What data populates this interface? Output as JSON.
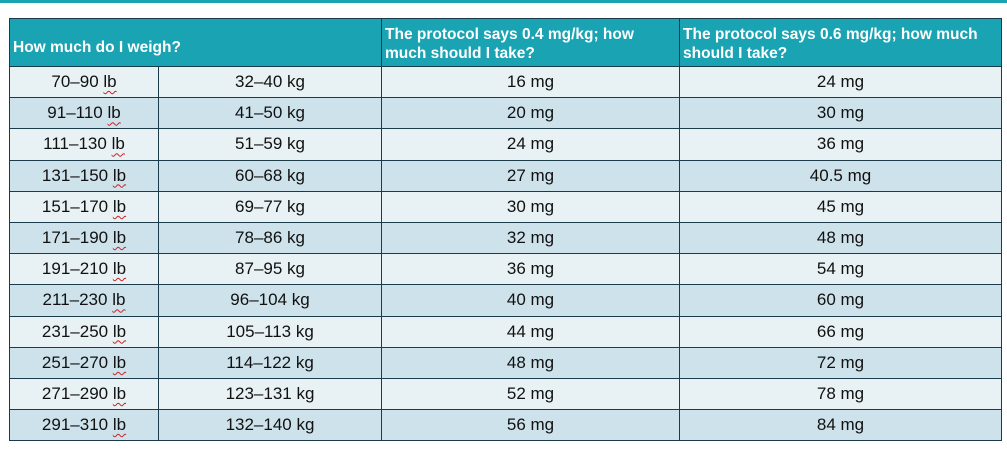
{
  "table": {
    "headers": [
      "How much do I weigh?",
      "The protocol says 0.4 mg/kg; how much should I take?",
      "The protocol says 0.6 mg/kg; how much should I take?"
    ],
    "rows": [
      {
        "lb_range": "70–90",
        "lb_unit": "lb",
        "kg": "32–40 kg",
        "dose_04": "16 mg",
        "dose_06": "24 mg"
      },
      {
        "lb_range": "91–110",
        "lb_unit": "lb",
        "kg": "41–50 kg",
        "dose_04": "20 mg",
        "dose_06": "30 mg"
      },
      {
        "lb_range": "111–130",
        "lb_unit": "lb",
        "kg": "51–59 kg",
        "dose_04": "24 mg",
        "dose_06": "36 mg"
      },
      {
        "lb_range": "131–150",
        "lb_unit": "lb",
        "kg": "60–68 kg",
        "dose_04": "27 mg",
        "dose_06": "40.5 mg"
      },
      {
        "lb_range": "151–170",
        "lb_unit": "lb",
        "kg": "69–77 kg",
        "dose_04": "30 mg",
        "dose_06": "45 mg"
      },
      {
        "lb_range": "171–190",
        "lb_unit": "lb",
        "kg": "78–86 kg",
        "dose_04": "32 mg",
        "dose_06": "48 mg"
      },
      {
        "lb_range": "191–210",
        "lb_unit": "lb",
        "kg": "87–95 kg",
        "dose_04": "36 mg",
        "dose_06": "54 mg"
      },
      {
        "lb_range": "211–230",
        "lb_unit": "lb",
        "kg": "96–104 kg",
        "dose_04": "40 mg",
        "dose_06": "60 mg"
      },
      {
        "lb_range": "231–250",
        "lb_unit": "lb",
        "kg": "105–113 kg",
        "dose_04": "44 mg",
        "dose_06": "66 mg"
      },
      {
        "lb_range": "251–270",
        "lb_unit": "lb",
        "kg": "114–122 kg",
        "dose_04": "48 mg",
        "dose_06": "72 mg"
      },
      {
        "lb_range": "271–290",
        "lb_unit": "lb",
        "kg": "123–131 kg",
        "dose_04": "52 mg",
        "dose_06": "78 mg"
      },
      {
        "lb_range": "291–310",
        "lb_unit": "lb",
        "kg": "132–140 kg",
        "dose_04": "56 mg",
        "dose_06": "84 mg"
      }
    ]
  },
  "colors": {
    "header_bg": "#1aa3b2",
    "row_light": "#e8f1f4",
    "row_dark": "#cde2ea",
    "border": "#1b3a4a"
  }
}
